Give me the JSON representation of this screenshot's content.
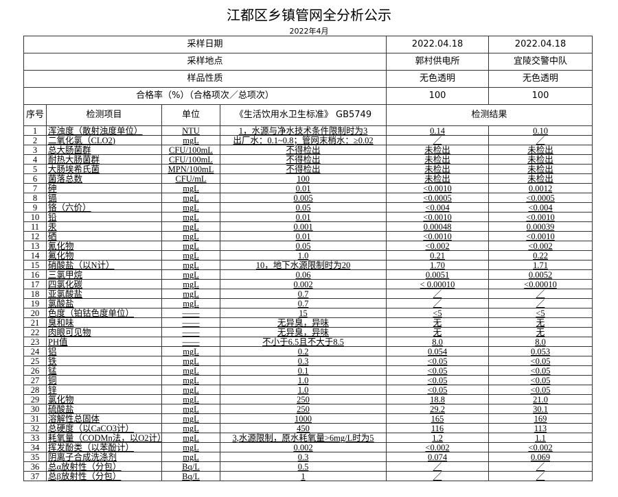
{
  "title": "江都区乡镇管网全分析公示",
  "subtitle": "2022年4月",
  "info_rows": [
    {
      "label": "采样日期",
      "values": [
        "2022.04.18",
        "2022.04.18"
      ]
    },
    {
      "label": "采样地点",
      "values": [
        "郭村供电所",
        "宜陵交警中队"
      ]
    },
    {
      "label": "样品性质",
      "values": [
        "无色透明",
        "无色透明"
      ]
    },
    {
      "label": "合格率（%）（合格项次／总项次）",
      "values": [
        "100",
        "100"
      ]
    }
  ],
  "columns": {
    "seq": "序号",
    "item": "检测项目",
    "unit": "单位",
    "standard": "《生活饮用水卫生标准》 GB5749",
    "results": "检测结果"
  },
  "rows": [
    [
      "1",
      "浑浊度（散射浊度单位）",
      "NTU",
      "1，水源与净水技术条件限制时为3",
      "0.14",
      "0.10"
    ],
    [
      "2",
      "二氧化氯（CLO2)",
      "mgL",
      "出厂水：0.1~0.8；管网末梢水：≥0.02",
      "／",
      "／"
    ],
    [
      "3",
      "总大肠菌群",
      "CFU/100mL",
      "不得检出",
      "未检出",
      "未检出"
    ],
    [
      "4",
      "耐热大肠菌群",
      "CFU/100mL",
      "不得检出",
      "未检出",
      "未检出"
    ],
    [
      "5",
      "大肠埃希氏菌",
      "MPN/100mL",
      "不得检出",
      "未检出",
      "未检出"
    ],
    [
      "6",
      "菌落总数",
      "CFU/mL",
      "100",
      "未检出",
      "未检出"
    ],
    [
      "7",
      "砷",
      "mgL",
      "0.01",
      "<0.0010",
      "0.0012"
    ],
    [
      "8",
      "镉",
      "mgL",
      "0.005",
      "<0.0005",
      "<0.0005"
    ],
    [
      "9",
      "铬（六价）",
      "mgL",
      "0.05",
      "<0.004",
      "<0.004"
    ],
    [
      "10",
      "铅",
      "mgL",
      "0.01",
      "<0.0010",
      "<0.0010"
    ],
    [
      "11",
      "汞",
      "mgL",
      "0.001",
      "0.00048",
      "0.00039"
    ],
    [
      "12",
      "硒",
      "mgL",
      "0.01",
      "<0.0010",
      "<0.0010"
    ],
    [
      "13",
      "氰化物",
      "mgL",
      "0.05",
      "<0.002",
      "<0.002"
    ],
    [
      "14",
      "氟化物",
      "mgL",
      "1.0",
      "0.21",
      "0.22"
    ],
    [
      "15",
      "硝酸盐（以N计）",
      "mgL",
      "10，地下水源限制时为20",
      "1.70",
      "1.71"
    ],
    [
      "16",
      "三氯甲烷",
      "mgL",
      "0.06",
      "0.0051",
      "0.0052"
    ],
    [
      "17",
      "四氯化碳",
      "mgL",
      "0.002",
      "< 0.00010",
      "<0.00010"
    ],
    [
      "18",
      "亚氯酸盐",
      "mgL",
      "0.7",
      "／",
      "／"
    ],
    [
      "19",
      "氯酸盐",
      "mgL",
      "0.7",
      "／",
      "／"
    ],
    [
      "20",
      "色度（铂钴色度单位）",
      "——",
      "15",
      "<5",
      "<5"
    ],
    [
      "21",
      "臭和味",
      "——",
      "无异臭，异味",
      "无",
      "无"
    ],
    [
      "22",
      "肉眼可见物",
      "——",
      "无异臭，异味",
      "无",
      "无"
    ],
    [
      "23",
      "PH值",
      "——",
      "不小于6.5且不大于8.5",
      "8.0",
      "8.0"
    ],
    [
      "24",
      "铝",
      "mgL",
      "0.2",
      "0.054",
      "0.053"
    ],
    [
      "25",
      "铁",
      "mgL",
      "0.3",
      "<0.05",
      "<0.05"
    ],
    [
      "26",
      "锰",
      "mgL",
      "0.1",
      "<0.05",
      "<0.05"
    ],
    [
      "27",
      "铜",
      "mgL",
      "1.0",
      "<0.05",
      "<0.05"
    ],
    [
      "28",
      "锌",
      "mgL",
      "1.0",
      "<0.05",
      "<0.05"
    ],
    [
      "29",
      "氯化物",
      "mgL",
      "250",
      "18.8",
      "21.0"
    ],
    [
      "30",
      "硫酸盐",
      "mgL",
      "250",
      "29.2",
      "30.1"
    ],
    [
      "31",
      "溶解性总固体",
      "mgL",
      "1000",
      "165",
      "169"
    ],
    [
      "32",
      "总硬度（以CaCO3计）",
      "mgL",
      "450",
      "116",
      "113"
    ],
    [
      "33",
      "耗氧量（CODMn法，以O2计）",
      "mgL",
      "3,水源限制，原水耗氧量>6mg/L时为5",
      "1.2",
      "1.1"
    ],
    [
      "34",
      "挥发酚类（以苯酚计）",
      "mgL",
      "0.002",
      "<0.002",
      "<0.002"
    ],
    [
      "35",
      "阴离子合成洗涤剂",
      "mgL",
      "0.3",
      "0.074",
      "0.069"
    ],
    [
      "36",
      "总α放射性（分包）",
      "Bq/L",
      "0.5",
      "／",
      "／"
    ],
    [
      "37",
      "总β放射性（分包）",
      "Bq/L",
      "1",
      "／",
      "／"
    ]
  ]
}
